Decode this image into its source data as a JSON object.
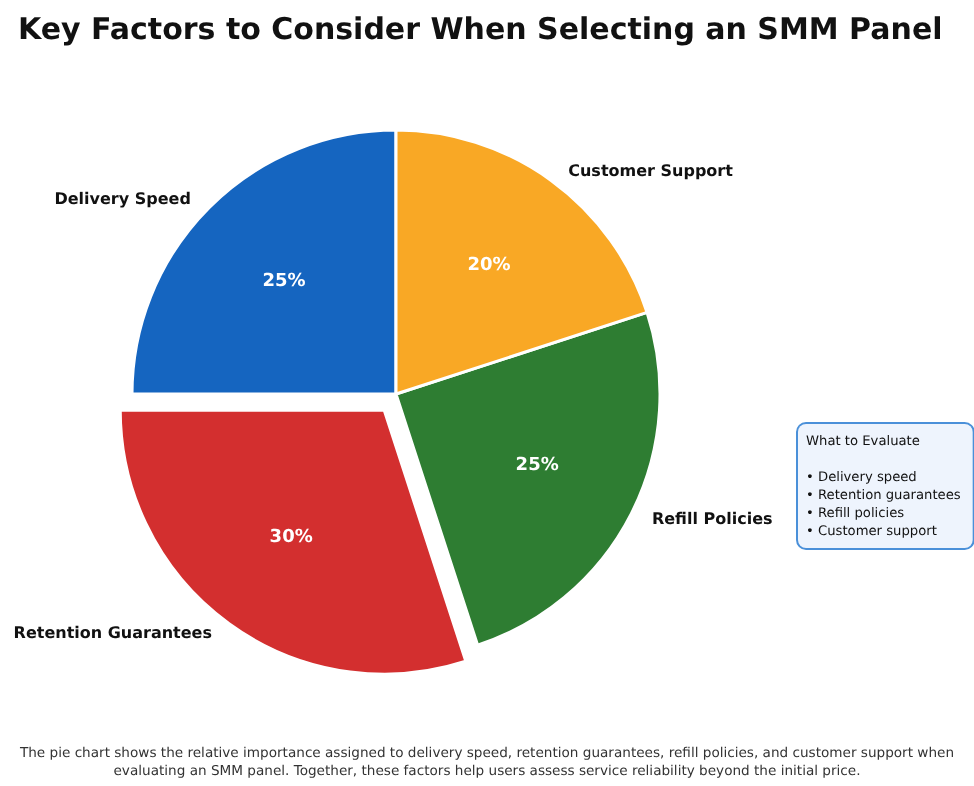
{
  "chart_data": {
    "type": "pie",
    "title": "Key Factors to Consider When Selecting an SMM Panel",
    "categories": [
      "Delivery Speed",
      "Retention Guarantees",
      "Refill Policies",
      "Customer Support"
    ],
    "values": [
      25,
      30,
      25,
      20
    ],
    "value_labels": [
      "25%",
      "30%",
      "25%",
      "20%"
    ],
    "colors": [
      "#1565c0",
      "#d32f2f",
      "#2e7d32",
      "#f9a825"
    ],
    "legend": false,
    "annotations": [
      "What to Evaluate\n\n• Delivery speed\n• Retention guarantees\n• Refill policies\n• Customer support",
      "The pie chart shows the relative importance assigned to delivery speed, retention guarantees, refill policies, and customer support when\nevaluating an SMM panel. Together, these factors help users assess service reliability beyond the initial price."
    ]
  }
}
